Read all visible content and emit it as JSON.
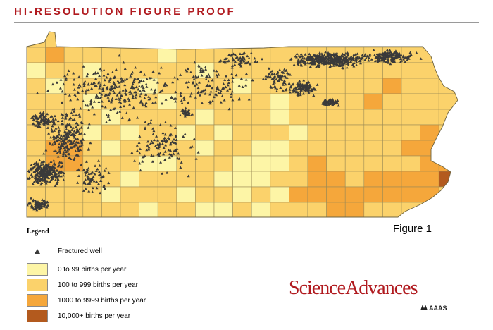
{
  "header": {
    "title": "HI-RESOLUTION FIGURE PROOF"
  },
  "figure_label": "Figure 1",
  "legend": {
    "title": "Legend",
    "items": [
      {
        "label": "Fractured well",
        "symbol": "triangle",
        "color": "#3a3a3a"
      },
      {
        "label": "0 to 99 births per year",
        "color": "#fdf5a6"
      },
      {
        "label": "100 to 999 births per year",
        "color": "#fbd26b"
      },
      {
        "label": "1000 to 9999 births per year",
        "color": "#f5a73b"
      },
      {
        "label": "10,000+ births per year",
        "color": "#b35a1e"
      }
    ]
  },
  "brand": {
    "journal_part1": "Science",
    "journal_part2": "Advances",
    "publisher": "AAAS",
    "color": "#b0191e"
  },
  "map": {
    "region_color_scale": [
      "#fdf5a6",
      "#fbd26b",
      "#f5a73b",
      "#b35a1e"
    ],
    "well_color": "#3a3a3a",
    "grid_stroke": "#9b8a55"
  }
}
